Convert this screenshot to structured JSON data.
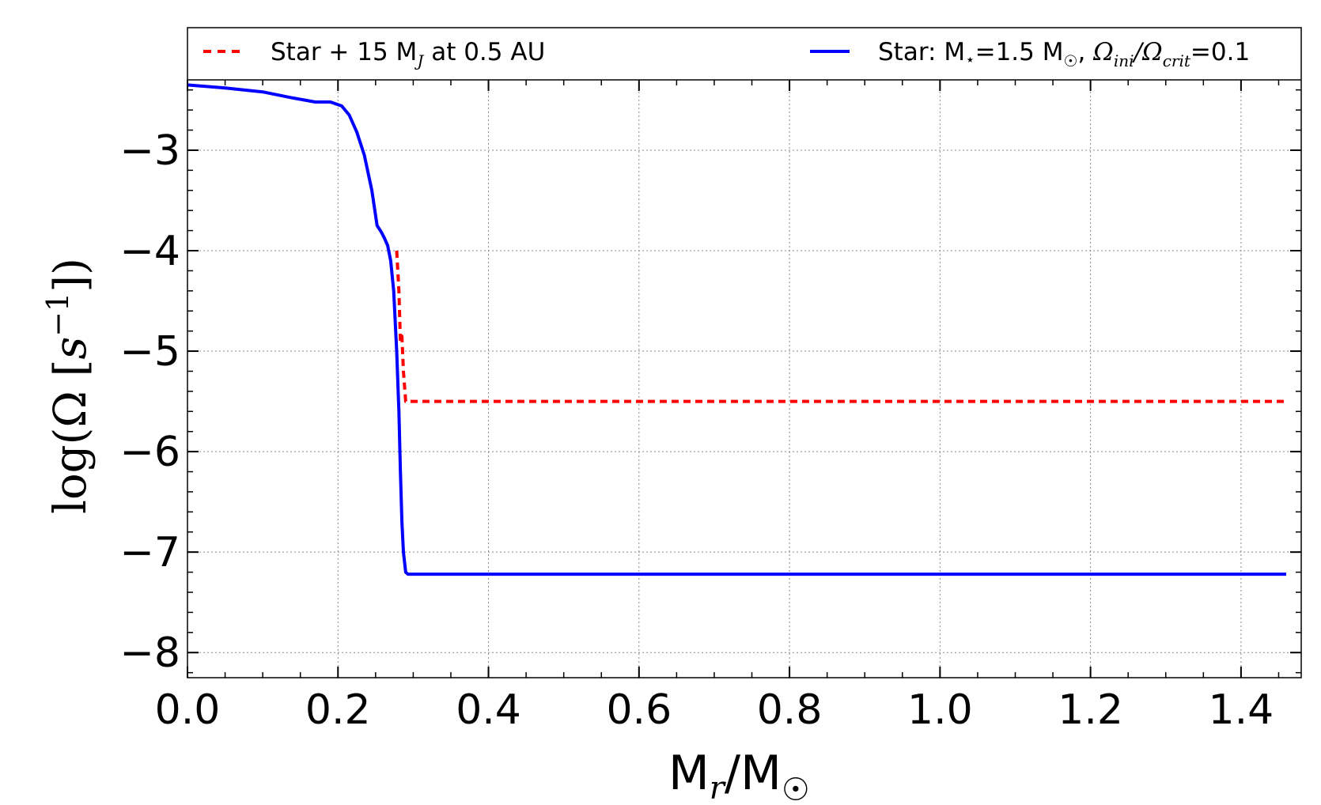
{
  "chart_data": {
    "type": "line",
    "xlabel": {
      "main": "M",
      "sub": "r",
      "after": "/M",
      "sun": "☉"
    },
    "ylabel": {
      "prefix": "log(Ω [",
      "var": "s",
      "sup": "−1",
      "suffix": "])"
    },
    "xlim": [
      0.0,
      1.48
    ],
    "ylim": [
      -8.25,
      -2.3
    ],
    "xticks": [
      0.0,
      0.2,
      0.4,
      0.6,
      0.8,
      1.0,
      1.2,
      1.4
    ],
    "xtick_labels": [
      "0.0",
      "0.2",
      "0.4",
      "0.6",
      "0.8",
      "1.0",
      "1.2",
      "1.4"
    ],
    "yticks": [
      -3,
      -4,
      -5,
      -6,
      -7,
      -8
    ],
    "ytick_labels": [
      "−3",
      "−4",
      "−5",
      "−6",
      "−7",
      "−8"
    ],
    "grid": true,
    "legend_position": "top, outside plot",
    "series": [
      {
        "id": "planet",
        "name": "Star + 15 M_J at 0.5 AU",
        "color": "#ff0000",
        "dash": "dashed",
        "x": [
          0.278,
          0.281,
          0.283,
          0.285,
          0.287,
          0.29,
          0.3,
          0.4,
          0.6,
          0.8,
          1.0,
          1.2,
          1.46
        ],
        "y": [
          -4.0,
          -4.4,
          -4.9,
          -4.85,
          -5.2,
          -5.5,
          -5.5,
          -5.5,
          -5.5,
          -5.5,
          -5.5,
          -5.5,
          -5.5
        ]
      },
      {
        "id": "star",
        "name": "Star: M⋆=1.5 M☉, Ωini/Ωcrit=0.1",
        "color": "#0000ff",
        "dash": "solid",
        "x": [
          0.0,
          0.05,
          0.1,
          0.14,
          0.17,
          0.19,
          0.205,
          0.215,
          0.225,
          0.235,
          0.245,
          0.252,
          0.258,
          0.262,
          0.266,
          0.27,
          0.274,
          0.278,
          0.281,
          0.283,
          0.285,
          0.287,
          0.29,
          0.293,
          0.3,
          0.4,
          0.6,
          0.8,
          1.0,
          1.2,
          1.46
        ],
        "y": [
          -2.35,
          -2.38,
          -2.42,
          -2.48,
          -2.52,
          -2.52,
          -2.56,
          -2.65,
          -2.82,
          -3.05,
          -3.4,
          -3.75,
          -3.82,
          -3.88,
          -3.95,
          -4.1,
          -4.4,
          -5.0,
          -5.6,
          -6.2,
          -6.7,
          -7.0,
          -7.2,
          -7.22,
          -7.22,
          -7.22,
          -7.22,
          -7.22,
          -7.22,
          -7.22,
          -7.22
        ]
      }
    ],
    "legend": {
      "planet": {
        "before": "Star + 15 M",
        "sub": "J",
        "after": " at 0.5 AU"
      },
      "star": {
        "t1": "Star: M",
        "star_sym": "⋆",
        "t2": "=1.5 M",
        "sun_sym": "☉",
        "t3": ", ",
        "omega1": "Ω",
        "sub1": "ini",
        "slash": "/",
        "omega2": "Ω",
        "sub2": "crit",
        "t4": "=0.1"
      }
    }
  }
}
